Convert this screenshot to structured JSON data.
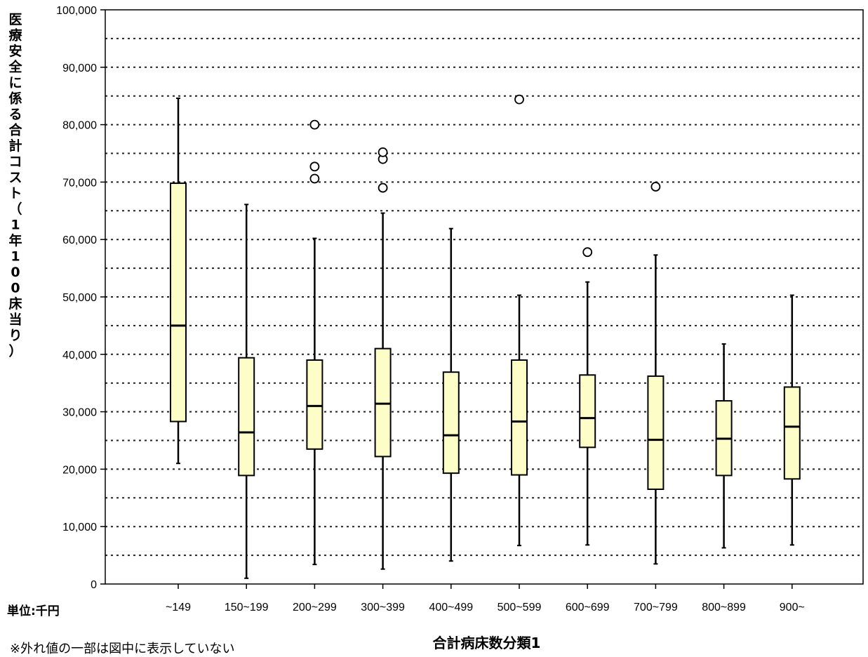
{
  "chart_data": {
    "type": "boxplot",
    "ylabel": "医療安全に係る合計コスト（1年100床当り）",
    "xlabel": "合計病床数分類1",
    "unit_note": "単位:千円",
    "footnote": "※外れ値の一部は図中に表示していない",
    "ylim": [
      0,
      100000
    ],
    "yticks": [
      0,
      10000,
      20000,
      30000,
      40000,
      50000,
      60000,
      70000,
      80000,
      90000,
      100000
    ],
    "ytick_labels": [
      "0",
      "10,000",
      "20,000",
      "30,000",
      "40,000",
      "50,000",
      "60,000",
      "70,000",
      "80,000",
      "90,000",
      "100,000"
    ],
    "grid": "dotted, every 5,000",
    "box_color": "#fdfdc8",
    "categories": [
      "~149",
      "150~199",
      "200~299",
      "300~399",
      "400~499",
      "500~599",
      "600~699",
      "700~799",
      "800~899",
      "900~"
    ],
    "boxes": [
      {
        "whisker_low": 21000,
        "q1": 28300,
        "median": 45000,
        "q3": 69800,
        "whisker_high": 84600,
        "outliers": []
      },
      {
        "whisker_low": 1000,
        "q1": 18900,
        "median": 26400,
        "q3": 39400,
        "whisker_high": 66100,
        "outliers": []
      },
      {
        "whisker_low": 3400,
        "q1": 23500,
        "median": 31000,
        "q3": 39000,
        "whisker_high": 60200,
        "outliers": [
          70600,
          72700,
          80000
        ]
      },
      {
        "whisker_low": 2600,
        "q1": 22200,
        "median": 31400,
        "q3": 41000,
        "whisker_high": 64600,
        "outliers": [
          69000,
          74000,
          75200
        ]
      },
      {
        "whisker_low": 4000,
        "q1": 19300,
        "median": 25900,
        "q3": 36900,
        "whisker_high": 61900,
        "outliers": []
      },
      {
        "whisker_low": 6700,
        "q1": 19000,
        "median": 28300,
        "q3": 39000,
        "whisker_high": 50300,
        "outliers": [
          84400
        ]
      },
      {
        "whisker_low": 6800,
        "q1": 23800,
        "median": 28900,
        "q3": 36400,
        "whisker_high": 52600,
        "outliers": [
          57800
        ]
      },
      {
        "whisker_low": 3500,
        "q1": 16500,
        "median": 25100,
        "q3": 36200,
        "whisker_high": 57300,
        "outliers": [
          69200
        ]
      },
      {
        "whisker_low": 6300,
        "q1": 18900,
        "median": 25300,
        "q3": 31900,
        "whisker_high": 41800,
        "outliers": []
      },
      {
        "whisker_low": 6800,
        "q1": 18300,
        "median": 27400,
        "q3": 34300,
        "whisker_high": 50300,
        "outliers": []
      }
    ]
  }
}
